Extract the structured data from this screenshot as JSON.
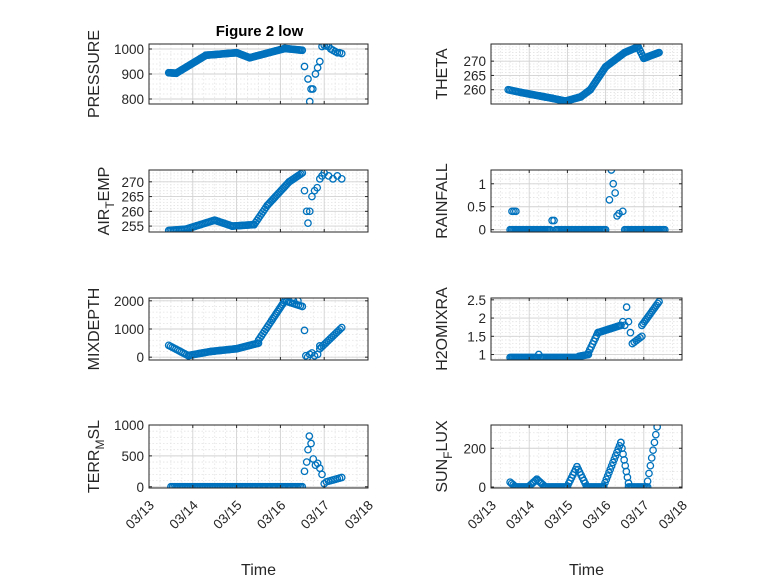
{
  "chart_data": [
    {
      "type": "scatter",
      "id": "pressure",
      "title": "Figure 2 low",
      "ylabel": "PRESSURE",
      "ylabel_sub": "",
      "ylim": [
        780,
        1020
      ],
      "yticks": [
        {
          "v": 800,
          "label": "800"
        },
        {
          "v": 900,
          "label": "900"
        },
        {
          "v": 1000,
          "label": "1000"
        }
      ],
      "xlim": [
        "03/13",
        "03/18"
      ],
      "xticks": [
        "03/13",
        "03/14",
        "03/15",
        "03/16",
        "03/17",
        "03/18"
      ],
      "x_ticklabels": false,
      "xlabel": "",
      "grid": true,
      "minor_grid": true,
      "marker": "o",
      "color": "#0072BD",
      "segments": [
        {
          "x0": 13.45,
          "x1": 13.62,
          "y0": 905,
          "y1": 903,
          "n": 8
        },
        {
          "x0": 13.62,
          "x1": 14.3,
          "y0": 903,
          "y1": 975,
          "n": 26
        },
        {
          "x0": 14.3,
          "x1": 15.0,
          "y0": 975,
          "y1": 985,
          "n": 24
        },
        {
          "x0": 15.0,
          "x1": 15.3,
          "y0": 985,
          "y1": 965,
          "n": 12
        },
        {
          "x0": 15.3,
          "x1": 16.1,
          "y0": 965,
          "y1": 1002,
          "n": 28
        },
        {
          "x0": 16.1,
          "x1": 16.5,
          "y0": 1002,
          "y1": 995,
          "n": 14
        }
      ],
      "points": [
        [
          16.55,
          930
        ],
        [
          16.63,
          880
        ],
        [
          16.67,
          790
        ],
        [
          16.7,
          840
        ],
        [
          16.74,
          840
        ],
        [
          16.8,
          900
        ],
        [
          16.85,
          925
        ],
        [
          16.9,
          950
        ],
        [
          16.95,
          1010
        ],
        [
          17.0,
          1015
        ],
        [
          17.05,
          1012
        ],
        [
          17.1,
          1010
        ],
        [
          17.15,
          1000
        ],
        [
          17.2,
          995
        ],
        [
          17.25,
          990
        ],
        [
          17.3,
          985
        ],
        [
          17.35,
          985
        ],
        [
          17.4,
          982
        ]
      ]
    },
    {
      "type": "scatter",
      "id": "theta",
      "title": "",
      "ylabel": "THETA",
      "ylabel_sub": "",
      "ylim": [
        255,
        276
      ],
      "yticks": [
        {
          "v": 260,
          "label": "260"
        },
        {
          "v": 265,
          "label": "265"
        },
        {
          "v": 270,
          "label": "270"
        }
      ],
      "xlim": [
        "03/13",
        "03/18"
      ],
      "xticks": [
        "03/13",
        "03/14",
        "03/15",
        "03/16",
        "03/17",
        "03/18"
      ],
      "x_ticklabels": false,
      "xlabel": "",
      "grid": true,
      "minor_grid": true,
      "marker": "o",
      "color": "#0072BD",
      "segments": [
        {
          "x0": 13.45,
          "x1": 13.8,
          "y0": 260,
          "y1": 259,
          "n": 10
        },
        {
          "x0": 13.8,
          "x1": 14.6,
          "y0": 259,
          "y1": 257,
          "n": 25
        },
        {
          "x0": 14.6,
          "x1": 14.95,
          "y0": 257,
          "y1": 256,
          "n": 12
        },
        {
          "x0": 14.95,
          "x1": 15.35,
          "y0": 256,
          "y1": 257.5,
          "n": 14
        },
        {
          "x0": 15.35,
          "x1": 15.6,
          "y0": 257.5,
          "y1": 260,
          "n": 8
        },
        {
          "x0": 15.6,
          "x1": 16.0,
          "y0": 260,
          "y1": 268,
          "n": 16
        },
        {
          "x0": 16.0,
          "x1": 16.5,
          "y0": 268,
          "y1": 273,
          "n": 18
        },
        {
          "x0": 16.5,
          "x1": 16.85,
          "y0": 273,
          "y1": 275,
          "n": 12
        },
        {
          "x0": 16.85,
          "x1": 17.0,
          "y0": 275,
          "y1": 271,
          "n": 6
        },
        {
          "x0": 17.0,
          "x1": 17.4,
          "y0": 271,
          "y1": 273,
          "n": 14
        }
      ],
      "points": []
    },
    {
      "type": "scatter",
      "id": "air-temp",
      "title": "",
      "ylabel": "AIR",
      "ylabel_sub": "T",
      "ylabel_suffix": "EMP",
      "ylim": [
        253,
        274
      ],
      "yticks": [
        {
          "v": 255,
          "label": "255"
        },
        {
          "v": 260,
          "label": "260"
        },
        {
          "v": 265,
          "label": "265"
        },
        {
          "v": 270,
          "label": "270"
        }
      ],
      "xlim": [
        "03/13",
        "03/18"
      ],
      "xticks": [
        "03/13",
        "03/14",
        "03/15",
        "03/16",
        "03/17",
        "03/18"
      ],
      "x_ticklabels": false,
      "xlabel": "",
      "grid": true,
      "minor_grid": true,
      "marker": "o",
      "color": "#0072BD",
      "segments": [
        {
          "x0": 13.45,
          "x1": 13.85,
          "y0": 253.5,
          "y1": 254,
          "n": 12
        },
        {
          "x0": 13.85,
          "x1": 14.5,
          "y0": 254,
          "y1": 257,
          "n": 20
        },
        {
          "x0": 14.5,
          "x1": 14.9,
          "y0": 257,
          "y1": 255,
          "n": 12
        },
        {
          "x0": 14.9,
          "x1": 15.4,
          "y0": 255,
          "y1": 255.5,
          "n": 16
        },
        {
          "x0": 15.4,
          "x1": 15.7,
          "y0": 255.5,
          "y1": 262,
          "n": 10
        },
        {
          "x0": 15.7,
          "x1": 16.2,
          "y0": 262,
          "y1": 270,
          "n": 18
        },
        {
          "x0": 16.2,
          "x1": 16.5,
          "y0": 270,
          "y1": 273,
          "n": 10
        }
      ],
      "points": [
        [
          16.55,
          267
        ],
        [
          16.6,
          260
        ],
        [
          16.63,
          256
        ],
        [
          16.67,
          260
        ],
        [
          16.72,
          265
        ],
        [
          16.78,
          267
        ],
        [
          16.84,
          268
        ],
        [
          16.9,
          271
        ],
        [
          16.95,
          272
        ],
        [
          17.0,
          273
        ],
        [
          17.1,
          272
        ],
        [
          17.2,
          271
        ],
        [
          17.3,
          272
        ],
        [
          17.4,
          271
        ]
      ]
    },
    {
      "type": "scatter",
      "id": "rainfall",
      "title": "",
      "ylabel": "RAINFALL",
      "ylabel_sub": "",
      "ylim": [
        -0.05,
        1.3
      ],
      "yticks": [
        {
          "v": 0,
          "label": "0"
        },
        {
          "v": 0.5,
          "label": "0.5"
        },
        {
          "v": 1,
          "label": "1"
        }
      ],
      "xlim": [
        "03/13",
        "03/18"
      ],
      "xticks": [
        "03/13",
        "03/14",
        "03/15",
        "03/16",
        "03/17",
        "03/18"
      ],
      "x_ticklabels": false,
      "xlabel": "",
      "grid": true,
      "minor_grid": true,
      "marker": "o",
      "color": "#0072BD",
      "segments": [
        {
          "x0": 13.5,
          "x1": 14.55,
          "y0": 0,
          "y1": 0,
          "n": 30
        },
        {
          "x0": 14.7,
          "x1": 16.0,
          "y0": 0,
          "y1": 0,
          "n": 36
        },
        {
          "x0": 16.5,
          "x1": 17.55,
          "y0": 0,
          "y1": 0,
          "n": 30
        }
      ],
      "points": [
        [
          13.55,
          0.4
        ],
        [
          13.6,
          0.4
        ],
        [
          13.65,
          0.4
        ],
        [
          14.6,
          0.2
        ],
        [
          14.65,
          0.2
        ],
        [
          16.1,
          0.65
        ],
        [
          16.15,
          1.3
        ],
        [
          16.2,
          1.0
        ],
        [
          16.25,
          0.8
        ],
        [
          16.3,
          0.3
        ],
        [
          16.35,
          0.35
        ],
        [
          16.45,
          0.4
        ]
      ]
    },
    {
      "type": "scatter",
      "id": "mixdepth",
      "title": "",
      "ylabel": "MIXDEPTH",
      "ylabel_sub": "",
      "ylim": [
        -100,
        2100
      ],
      "yticks": [
        {
          "v": 0,
          "label": "0"
        },
        {
          "v": 1000,
          "label": "1000"
        },
        {
          "v": 2000,
          "label": "2000"
        }
      ],
      "xlim": [
        "03/13",
        "03/18"
      ],
      "xticks": [
        "03/13",
        "03/14",
        "03/15",
        "03/16",
        "03/17",
        "03/18"
      ],
      "x_ticklabels": false,
      "xlabel": "",
      "grid": true,
      "minor_grid": true,
      "marker": "o",
      "color": "#0072BD",
      "segments": [
        {
          "x0": 13.45,
          "x1": 13.9,
          "y0": 420,
          "y1": 50,
          "n": 12
        },
        {
          "x0": 13.9,
          "x1": 14.4,
          "y0": 60,
          "y1": 200,
          "n": 16
        },
        {
          "x0": 14.4,
          "x1": 15.0,
          "y0": 200,
          "y1": 300,
          "n": 20
        },
        {
          "x0": 15.0,
          "x1": 15.5,
          "y0": 300,
          "y1": 500,
          "n": 16
        },
        {
          "x0": 15.5,
          "x1": 15.8,
          "y0": 600,
          "y1": 1300,
          "n": 10
        },
        {
          "x0": 15.8,
          "x1": 16.1,
          "y0": 1300,
          "y1": 2000,
          "n": 12
        },
        {
          "x0": 16.1,
          "x1": 16.5,
          "y0": 2000,
          "y1": 1800,
          "n": 10
        },
        {
          "x0": 16.9,
          "x1": 17.4,
          "y0": 300,
          "y1": 1050,
          "n": 14
        }
      ],
      "points": [
        [
          16.3,
          2000
        ],
        [
          16.4,
          2000
        ],
        [
          16.5,
          1800
        ],
        [
          16.55,
          950
        ],
        [
          16.58,
          50
        ],
        [
          16.62,
          0
        ],
        [
          16.67,
          100
        ],
        [
          16.72,
          150
        ],
        [
          16.78,
          50
        ],
        [
          16.85,
          100
        ],
        [
          16.9,
          400
        ]
      ]
    },
    {
      "type": "scatter",
      "id": "h2omixra",
      "title": "",
      "ylabel": "H2OMIXRA",
      "ylabel_sub": "",
      "ylim": [
        0.85,
        2.55
      ],
      "yticks": [
        {
          "v": 1,
          "label": "1"
        },
        {
          "v": 1.5,
          "label": "1.5"
        },
        {
          "v": 2,
          "label": "2"
        },
        {
          "v": 2.5,
          "label": "2.5"
        }
      ],
      "xlim": [
        "03/13",
        "03/18"
      ],
      "xticks": [
        "03/13",
        "03/14",
        "03/15",
        "03/16",
        "03/17",
        "03/18"
      ],
      "x_ticklabels": false,
      "xlabel": "",
      "grid": true,
      "minor_grid": true,
      "marker": "o",
      "color": "#0072BD",
      "segments": [
        {
          "x0": 13.5,
          "x1": 14.2,
          "y0": 0.92,
          "y1": 0.92,
          "n": 22
        },
        {
          "x0": 14.3,
          "x1": 15.3,
          "y0": 0.92,
          "y1": 0.92,
          "n": 28
        },
        {
          "x0": 15.3,
          "x1": 15.55,
          "y0": 0.95,
          "y1": 1.0,
          "n": 8
        },
        {
          "x0": 15.55,
          "x1": 15.8,
          "y0": 1.05,
          "y1": 1.6,
          "n": 8
        },
        {
          "x0": 15.8,
          "x1": 16.4,
          "y0": 1.6,
          "y1": 1.8,
          "n": 18
        },
        {
          "x0": 16.7,
          "x1": 16.95,
          "y0": 1.3,
          "y1": 1.5,
          "n": 6
        },
        {
          "x0": 16.95,
          "x1": 17.4,
          "y0": 1.8,
          "y1": 2.45,
          "n": 14
        }
      ],
      "points": [
        [
          14.25,
          1.0
        ],
        [
          16.45,
          1.9
        ],
        [
          16.5,
          1.8
        ],
        [
          16.55,
          2.3
        ],
        [
          16.6,
          1.9
        ],
        [
          16.65,
          1.6
        ]
      ]
    },
    {
      "type": "scatter",
      "id": "terr-msl",
      "title": "",
      "ylabel": "TERR",
      "ylabel_sub": "M",
      "ylabel_suffix": "SL",
      "ylim": [
        -20,
        1000
      ],
      "yticks": [
        {
          "v": 0,
          "label": "0"
        },
        {
          "v": 500,
          "label": "500"
        },
        {
          "v": 1000,
          "label": "1000"
        }
      ],
      "xlim": [
        "03/13",
        "03/18"
      ],
      "xticks": [
        "03/13",
        "03/14",
        "03/15",
        "03/16",
        "03/17",
        "03/18"
      ],
      "x_ticklabels": true,
      "xlabel": "Time",
      "grid": true,
      "minor_grid": true,
      "marker": "o",
      "color": "#0072BD",
      "segments": [
        {
          "x0": 13.5,
          "x1": 16.5,
          "y0": 0,
          "y1": 0,
          "n": 80
        },
        {
          "x0": 17.05,
          "x1": 17.4,
          "y0": 80,
          "y1": 150,
          "n": 8
        }
      ],
      "points": [
        [
          16.55,
          250
        ],
        [
          16.6,
          400
        ],
        [
          16.63,
          600
        ],
        [
          16.66,
          820
        ],
        [
          16.7,
          700
        ],
        [
          16.75,
          450
        ],
        [
          16.8,
          350
        ],
        [
          16.85,
          380
        ],
        [
          16.9,
          300
        ],
        [
          16.95,
          200
        ],
        [
          17.0,
          50
        ]
      ]
    },
    {
      "type": "scatter",
      "id": "sun-flux",
      "title": "",
      "ylabel": "SUN",
      "ylabel_sub": "F",
      "ylabel_suffix": "LUX",
      "ylim": [
        -5,
        320
      ],
      "yticks": [
        {
          "v": 0,
          "label": "0"
        },
        {
          "v": 200,
          "label": "200"
        }
      ],
      "xlim": [
        "03/13",
        "03/18"
      ],
      "xticks": [
        "03/13",
        "03/14",
        "03/15",
        "03/16",
        "03/17",
        "03/18"
      ],
      "x_ticklabels": true,
      "xlabel": "Time",
      "grid": true,
      "minor_grid": true,
      "marker": "o",
      "color": "#0072BD",
      "segments": [
        {
          "x0": 13.5,
          "x1": 13.62,
          "y0": 25,
          "y1": 5,
          "n": 4
        },
        {
          "x0": 13.62,
          "x1": 14.0,
          "y0": 0,
          "y1": 0,
          "n": 12
        },
        {
          "x0": 14.0,
          "x1": 14.2,
          "y0": 5,
          "y1": 40,
          "n": 6
        },
        {
          "x0": 14.2,
          "x1": 14.4,
          "y0": 40,
          "y1": 5,
          "n": 6
        },
        {
          "x0": 14.4,
          "x1": 15.0,
          "y0": 0,
          "y1": 0,
          "n": 18
        },
        {
          "x0": 15.0,
          "x1": 15.25,
          "y0": 5,
          "y1": 105,
          "n": 8
        },
        {
          "x0": 15.25,
          "x1": 15.5,
          "y0": 105,
          "y1": 5,
          "n": 8
        },
        {
          "x0": 15.5,
          "x1": 15.95,
          "y0": 0,
          "y1": 0,
          "n": 14
        },
        {
          "x0": 15.95,
          "x1": 16.4,
          "y0": 5,
          "y1": 230,
          "n": 14
        },
        {
          "x0": 16.4,
          "x1": 16.6,
          "y0": 230,
          "y1": 20,
          "n": 8
        },
        {
          "x0": 16.6,
          "x1": 17.1,
          "y0": 0,
          "y1": 0,
          "n": 14
        },
        {
          "x0": 17.1,
          "x1": 17.35,
          "y0": 30,
          "y1": 310,
          "n": 8
        }
      ],
      "points": []
    }
  ]
}
